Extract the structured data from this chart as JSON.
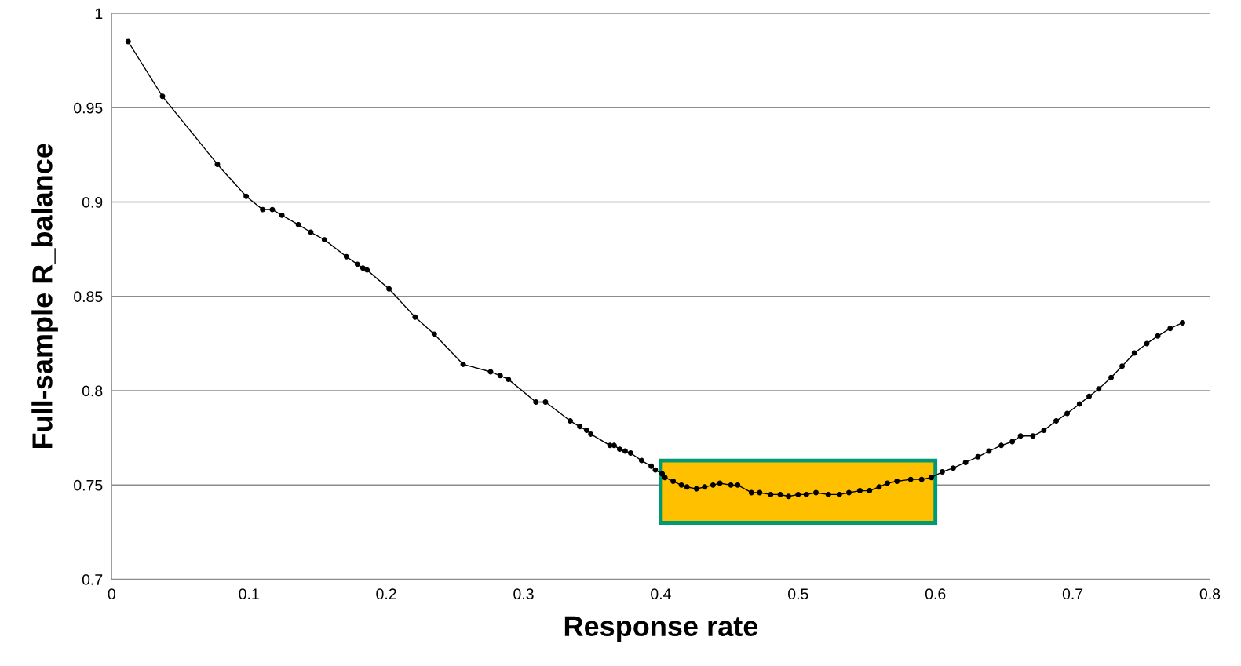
{
  "chart_data": {
    "type": "line",
    "xlabel": "Response rate",
    "ylabel": "Full-sample R_balance",
    "xlim": [
      0,
      0.8
    ],
    "xticks": [
      0,
      0.1,
      0.2,
      0.3,
      0.4,
      0.5,
      0.6,
      0.7,
      0.8
    ],
    "ylim": [
      0.7,
      1
    ],
    "yticks": [
      0.7,
      0.75,
      0.8,
      0.85,
      0.9,
      0.95,
      1
    ],
    "grid": "y",
    "marker": "circle",
    "line_style": "solid",
    "bands": [
      {
        "axis": "x",
        "from": 0.4,
        "to": 0.6,
        "color": "#ffc000"
      }
    ],
    "series": [
      {
        "color": "#000000",
        "x": [
          0.012,
          0.037,
          0.077,
          0.098,
          0.11,
          0.117,
          0.124,
          0.136,
          0.145,
          0.155,
          0.171,
          0.179,
          0.183,
          0.186,
          0.202,
          0.221,
          0.235,
          0.256,
          0.276,
          0.283,
          0.289,
          0.309,
          0.316,
          0.334,
          0.341,
          0.346,
          0.349,
          0.363,
          0.366,
          0.37,
          0.374,
          0.378,
          0.386,
          0.393,
          0.396,
          0.401,
          0.403,
          0.409,
          0.415,
          0.419,
          0.426,
          0.432,
          0.438,
          0.443,
          0.451,
          0.456,
          0.466,
          0.472,
          0.48,
          0.487,
          0.493,
          0.5,
          0.506,
          0.513,
          0.522,
          0.53,
          0.537,
          0.545,
          0.552,
          0.559,
          0.565,
          0.572,
          0.582,
          0.59,
          0.597,
          0.605,
          0.613,
          0.622,
          0.631,
          0.639,
          0.648,
          0.656,
          0.662,
          0.671,
          0.679,
          0.688,
          0.696,
          0.705,
          0.712,
          0.719,
          0.728,
          0.736,
          0.745,
          0.754,
          0.762,
          0.771,
          0.78
        ],
        "values": [
          0.985,
          0.956,
          0.92,
          0.903,
          0.896,
          0.896,
          0.893,
          0.888,
          0.884,
          0.88,
          0.871,
          0.867,
          0.865,
          0.864,
          0.854,
          0.839,
          0.83,
          0.814,
          0.81,
          0.808,
          0.806,
          0.794,
          0.794,
          0.784,
          0.781,
          0.779,
          0.777,
          0.771,
          0.771,
          0.769,
          0.768,
          0.767,
          0.763,
          0.76,
          0.758,
          0.756,
          0.754,
          0.752,
          0.75,
          0.749,
          0.748,
          0.749,
          0.75,
          0.751,
          0.75,
          0.75,
          0.746,
          0.746,
          0.745,
          0.745,
          0.744,
          0.745,
          0.745,
          0.746,
          0.745,
          0.745,
          0.746,
          0.747,
          0.747,
          0.749,
          0.751,
          0.752,
          0.753,
          0.753,
          0.754,
          0.757,
          0.759,
          0.762,
          0.765,
          0.768,
          0.771,
          0.773,
          0.776,
          0.776,
          0.779,
          0.784,
          0.788,
          0.793,
          0.797,
          0.801,
          0.807,
          0.813,
          0.82,
          0.825,
          0.829,
          0.833,
          0.836
        ]
      }
    ]
  }
}
